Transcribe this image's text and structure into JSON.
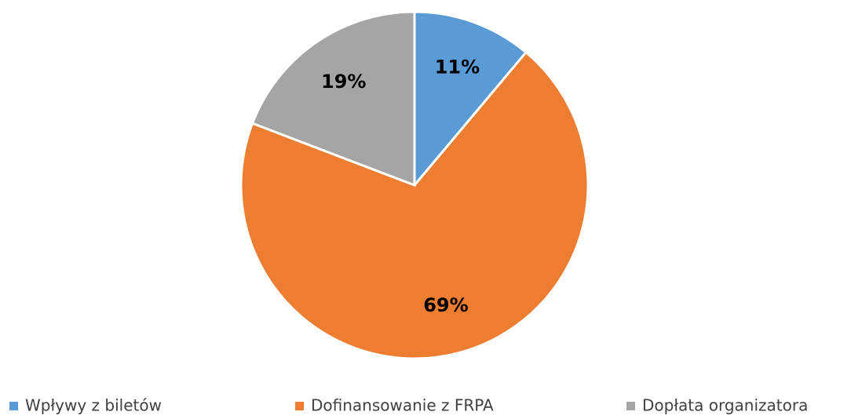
{
  "chart_data": {
    "type": "pie",
    "categories": [
      "Wpływy z biletów",
      "Dofinansowanie z FRPA",
      "Dopłata organizatora"
    ],
    "values": [
      11,
      69,
      19
    ],
    "value_labels": [
      "11%",
      "69%",
      "19%"
    ],
    "colors": [
      "#5b9bd5",
      "#ed7d31",
      "#a5a5a5"
    ],
    "legend": "bottom"
  }
}
